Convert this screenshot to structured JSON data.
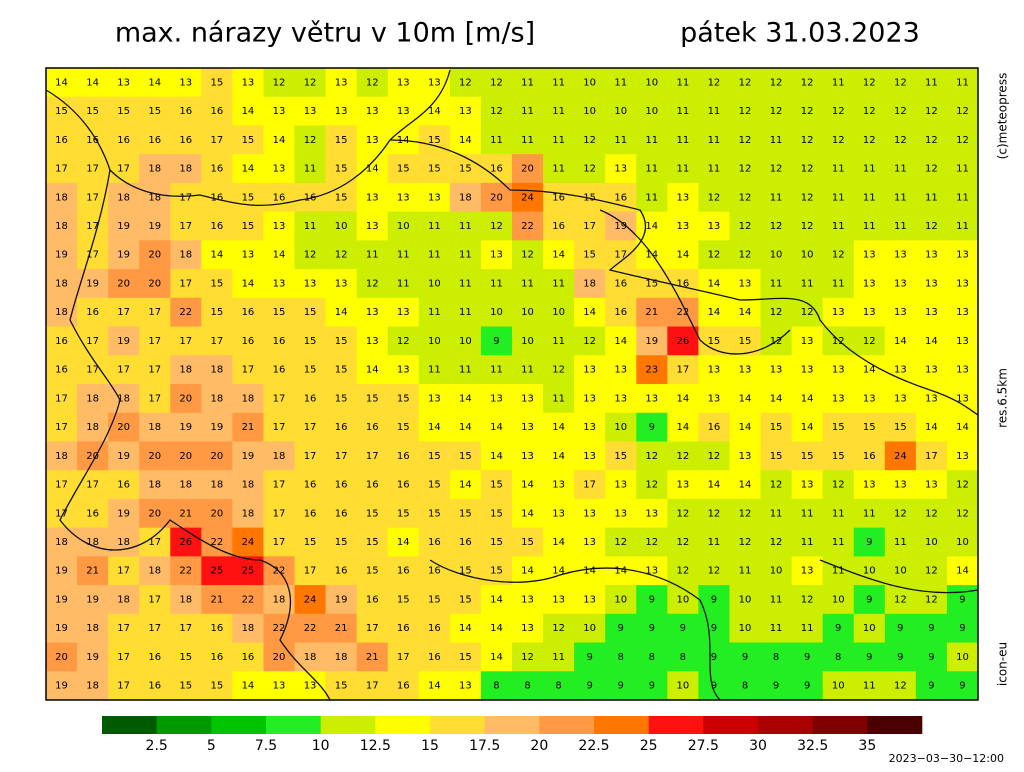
{
  "header": {
    "title": "max. nárazy větru v 10m [m/s]",
    "date": "pátek 31.03.2023"
  },
  "grid": {
    "rows": [
      [
        14,
        14,
        13,
        14,
        13,
        15,
        13,
        12,
        12,
        13,
        12,
        13,
        13,
        12,
        12,
        11,
        11,
        10,
        11,
        10,
        11,
        12,
        12,
        12,
        12,
        11,
        12,
        12,
        11,
        11
      ],
      [
        15,
        15,
        15,
        15,
        16,
        16,
        14,
        13,
        13,
        13,
        13,
        13,
        14,
        13,
        12,
        11,
        11,
        10,
        10,
        10,
        11,
        11,
        12,
        12,
        12,
        12,
        12,
        12,
        12,
        12
      ],
      [
        16,
        16,
        16,
        16,
        16,
        17,
        15,
        14,
        12,
        15,
        13,
        14,
        15,
        14,
        11,
        11,
        11,
        12,
        11,
        11,
        11,
        11,
        12,
        11,
        12,
        12,
        12,
        12,
        12,
        12
      ],
      [
        17,
        17,
        17,
        18,
        18,
        16,
        14,
        13,
        11,
        15,
        14,
        15,
        15,
        15,
        16,
        20,
        11,
        12,
        13,
        11,
        11,
        11,
        12,
        12,
        12,
        11,
        11,
        11,
        12,
        11
      ],
      [
        18,
        17,
        18,
        18,
        17,
        16,
        15,
        16,
        16,
        15,
        13,
        13,
        13,
        18,
        20,
        24,
        16,
        15,
        16,
        11,
        13,
        12,
        12,
        11,
        12,
        11,
        11,
        11,
        11,
        11
      ],
      [
        18,
        17,
        19,
        19,
        17,
        16,
        15,
        13,
        11,
        10,
        13,
        10,
        11,
        11,
        12,
        22,
        16,
        17,
        19,
        14,
        13,
        13,
        12,
        12,
        12,
        11,
        11,
        11,
        12,
        11
      ],
      [
        19,
        17,
        19,
        20,
        18,
        14,
        13,
        14,
        12,
        12,
        11,
        11,
        11,
        11,
        13,
        12,
        14,
        15,
        17,
        14,
        14,
        12,
        12,
        10,
        10,
        12,
        13,
        13,
        13,
        13
      ],
      [
        18,
        19,
        20,
        20,
        17,
        15,
        14,
        13,
        13,
        13,
        12,
        11,
        10,
        11,
        11,
        11,
        11,
        18,
        16,
        15,
        16,
        14,
        13,
        11,
        11,
        11,
        13,
        13,
        13,
        13
      ],
      [
        18,
        16,
        17,
        17,
        22,
        15,
        16,
        15,
        15,
        14,
        13,
        13,
        11,
        11,
        10,
        10,
        10,
        14,
        16,
        21,
        22,
        14,
        14,
        12,
        12,
        13,
        13,
        13,
        13,
        13
      ],
      [
        16,
        17,
        19,
        17,
        17,
        17,
        16,
        16,
        15,
        15,
        13,
        12,
        10,
        10,
        9,
        10,
        11,
        12,
        14,
        19,
        26,
        15,
        15,
        12,
        13,
        12,
        12,
        14,
        14,
        13
      ],
      [
        16,
        17,
        17,
        17,
        18,
        18,
        17,
        16,
        15,
        15,
        14,
        13,
        11,
        11,
        11,
        11,
        12,
        13,
        13,
        23,
        17,
        13,
        13,
        13,
        13,
        13,
        14,
        13,
        13,
        13
      ],
      [
        17,
        18,
        18,
        17,
        20,
        18,
        18,
        17,
        16,
        15,
        15,
        15,
        13,
        14,
        13,
        13,
        11,
        13,
        13,
        13,
        14,
        13,
        14,
        14,
        14,
        13,
        13,
        13,
        13,
        13
      ],
      [
        17,
        18,
        20,
        18,
        19,
        19,
        21,
        17,
        17,
        16,
        16,
        15,
        14,
        14,
        14,
        13,
        14,
        13,
        10,
        9,
        14,
        16,
        14,
        15,
        14,
        15,
        15,
        15,
        14,
        14
      ],
      [
        18,
        20,
        19,
        20,
        20,
        20,
        19,
        18,
        17,
        17,
        17,
        16,
        15,
        15,
        14,
        13,
        14,
        13,
        15,
        12,
        12,
        12,
        13,
        15,
        15,
        15,
        16,
        24,
        17,
        13
      ],
      [
        17,
        17,
        16,
        18,
        18,
        18,
        18,
        17,
        16,
        16,
        16,
        16,
        15,
        14,
        15,
        14,
        13,
        17,
        13,
        12,
        13,
        14,
        14,
        12,
        13,
        12,
        13,
        13,
        13,
        12
      ],
      [
        17,
        16,
        19,
        20,
        21,
        20,
        18,
        17,
        16,
        16,
        15,
        15,
        15,
        15,
        15,
        14,
        13,
        13,
        13,
        13,
        12,
        12,
        12,
        11,
        11,
        11,
        11,
        12,
        12,
        12
      ],
      [
        18,
        18,
        18,
        17,
        26,
        22,
        24,
        17,
        15,
        15,
        15,
        14,
        16,
        16,
        15,
        15,
        14,
        13,
        12,
        12,
        12,
        11,
        12,
        12,
        11,
        11,
        9,
        11,
        10,
        10
      ],
      [
        19,
        21,
        17,
        18,
        22,
        25,
        25,
        22,
        17,
        16,
        15,
        16,
        16,
        15,
        15,
        14,
        14,
        14,
        14,
        13,
        12,
        12,
        11,
        10,
        13,
        11,
        10,
        10,
        12,
        14
      ],
      [
        19,
        19,
        18,
        17,
        18,
        21,
        22,
        18,
        24,
        19,
        16,
        15,
        15,
        15,
        14,
        13,
        13,
        13,
        10,
        9,
        10,
        9,
        10,
        11,
        12,
        10,
        9,
        12,
        12,
        9
      ],
      [
        19,
        18,
        17,
        17,
        17,
        16,
        18,
        22,
        22,
        21,
        17,
        16,
        16,
        14,
        14,
        13,
        12,
        10,
        9,
        9,
        9,
        9,
        10,
        11,
        11,
        9,
        10,
        9,
        9,
        9
      ],
      [
        20,
        19,
        17,
        16,
        15,
        16,
        16,
        20,
        18,
        18,
        21,
        17,
        16,
        15,
        14,
        12,
        11,
        9,
        8,
        8,
        8,
        9,
        9,
        8,
        9,
        8,
        9,
        9,
        9,
        10
      ],
      [
        19,
        18,
        17,
        16,
        15,
        15,
        14,
        13,
        13,
        15,
        17,
        16,
        14,
        13,
        8,
        8,
        8,
        9,
        9,
        9,
        10,
        9,
        8,
        9,
        9,
        10,
        11,
        12,
        9,
        9
      ]
    ]
  },
  "colorbar": {
    "step": 2.5,
    "colors": [
      "#005a00",
      "#009a00",
      "#00c400",
      "#22ee22",
      "#ccee00",
      "#ffff00",
      "#ffdd33",
      "#ffbb66",
      "#ff9944",
      "#ff7700",
      "#ff1111",
      "#cc0000",
      "#aa0000",
      "#800000",
      "#4a0000"
    ],
    "labels": [
      2.5,
      5,
      7.5,
      10,
      12.5,
      15,
      17.5,
      20,
      22.5,
      25,
      27.5,
      30,
      32.5,
      35
    ]
  },
  "side_labels": [
    "(c)meteopress",
    "res.6.5km",
    "icon-eu"
  ],
  "run_time": "2023−03−30−12:00"
}
